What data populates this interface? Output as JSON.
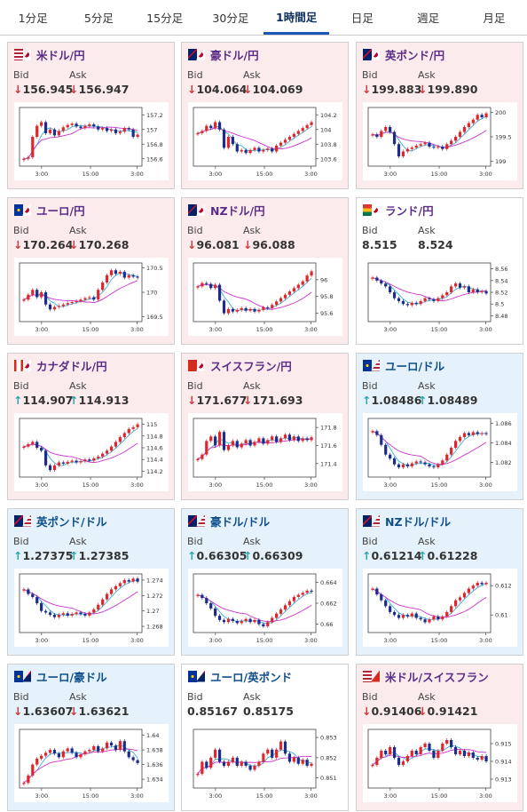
{
  "tabs": [
    {
      "label": "1分足",
      "active": false
    },
    {
      "label": "5分足",
      "active": false
    },
    {
      "label": "15分足",
      "active": false
    },
    {
      "label": "30分足",
      "active": false
    },
    {
      "label": "1時間足",
      "active": true
    },
    {
      "label": "日足",
      "active": false
    },
    {
      "label": "週足",
      "active": false
    },
    {
      "label": "月足",
      "active": false
    }
  ],
  "labels": {
    "bid": "Bid",
    "ask": "Ask"
  },
  "colors": {
    "candle_up": "#e0262b",
    "candle_down": "#1b2c8a",
    "ma_short": "#3ab0d8",
    "ma_long": "#cc33cc",
    "arrow_down": "#d13a3a",
    "arrow_up": "#2aa7ac"
  },
  "cards": [
    {
      "name": "米ドル/円",
      "flag": "us-jp",
      "theme": "jpy",
      "bid": "156.945",
      "ask": "156.947",
      "bid_dir": "down",
      "ask_dir": "down",
      "chart_data": {
        "type": "candlestick",
        "y_ticks": [
          "157.2",
          "157",
          "156.8",
          "156.6"
        ],
        "ylim": [
          156.5,
          157.3
        ],
        "x_ticks": [
          "3:00",
          "15:00",
          "3:00"
        ],
        "closes": [
          156.6,
          156.62,
          156.9,
          157.05,
          157.1,
          156.95,
          157.0,
          156.92,
          156.98,
          157.03,
          157.06,
          157.08,
          157.04,
          157.02,
          157.05,
          157.07,
          157.04,
          157.0,
          157.02,
          156.98,
          157.0,
          156.95,
          156.97,
          157.02,
          157.0,
          156.9,
          156.93
        ]
      }
    },
    {
      "name": "豪ドル/円",
      "flag": "au-jp",
      "theme": "jpy",
      "bid": "104.064",
      "ask": "104.069",
      "bid_dir": "down",
      "ask_dir": "down",
      "chart_data": {
        "type": "candlestick",
        "y_ticks": [
          "104.2",
          "104",
          "103.8",
          "103.6"
        ],
        "ylim": [
          103.5,
          104.3
        ],
        "x_ticks": [
          "3:00",
          "15:00",
          "3:00"
        ],
        "closes": [
          103.95,
          103.98,
          104.05,
          104.02,
          104.1,
          104.0,
          103.75,
          103.9,
          103.8,
          103.7,
          103.72,
          103.68,
          103.72,
          103.75,
          103.7,
          103.72,
          103.74,
          103.7,
          103.78,
          103.82,
          103.86,
          103.9,
          103.94,
          103.98,
          104.02,
          104.06,
          104.1
        ]
      }
    },
    {
      "name": "英ポンド/円",
      "flag": "gb-jp",
      "theme": "jpy",
      "bid": "199.883",
      "ask": "199.890",
      "bid_dir": "down",
      "ask_dir": "down",
      "chart_data": {
        "type": "candlestick",
        "y_ticks": [
          "200",
          "199.5",
          "199"
        ],
        "ylim": [
          198.9,
          200.1
        ],
        "x_ticks": [
          "3:00",
          "15:00",
          "3:00"
        ],
        "closes": [
          199.55,
          199.5,
          199.62,
          199.7,
          199.6,
          199.35,
          199.1,
          199.2,
          199.25,
          199.28,
          199.32,
          199.35,
          199.38,
          199.3,
          199.28,
          199.3,
          199.25,
          199.35,
          199.42,
          199.5,
          199.6,
          199.7,
          199.78,
          199.85,
          199.95,
          199.9,
          199.98
        ]
      }
    },
    {
      "name": "ユーロ/円",
      "flag": "eu-jp",
      "theme": "jpy",
      "bid": "170.264",
      "ask": "170.268",
      "bid_dir": "down",
      "ask_dir": "down",
      "chart_data": {
        "type": "candlestick",
        "y_ticks": [
          "170.5",
          "170",
          "169.5"
        ],
        "ylim": [
          169.4,
          170.6
        ],
        "x_ticks": [
          "3:00",
          "15:00",
          "3:00"
        ],
        "closes": [
          169.85,
          169.95,
          170.05,
          169.9,
          170.0,
          169.75,
          169.65,
          169.7,
          169.72,
          169.75,
          169.78,
          169.8,
          169.82,
          169.85,
          169.88,
          169.9,
          169.85,
          170.05,
          170.2,
          170.35,
          170.45,
          170.38,
          170.42,
          170.3,
          170.35,
          170.32,
          170.3
        ]
      }
    },
    {
      "name": "NZドル/円",
      "flag": "nz-jp",
      "theme": "jpy",
      "bid": "96.081",
      "ask": "96.088",
      "bid_dir": "down",
      "ask_dir": "down",
      "chart_data": {
        "type": "candlestick",
        "y_ticks": [
          "96",
          "95.8",
          "95.6"
        ],
        "ylim": [
          95.5,
          96.2
        ],
        "x_ticks": [
          "3:00",
          "15:00",
          "3:00"
        ],
        "closes": [
          95.92,
          95.96,
          95.95,
          95.9,
          95.94,
          95.75,
          95.6,
          95.65,
          95.62,
          95.64,
          95.66,
          95.63,
          95.65,
          95.62,
          95.64,
          95.67,
          95.66,
          95.7,
          95.74,
          95.78,
          95.82,
          95.86,
          95.9,
          95.94,
          95.98,
          96.05,
          96.1
        ]
      }
    },
    {
      "name": "ランド/円",
      "flag": "za-jp",
      "theme": "white",
      "bid": "8.515",
      "ask": "8.524",
      "bid_dir": "none",
      "ask_dir": "none",
      "chart_data": {
        "type": "candlestick",
        "y_ticks": [
          "8.56",
          "8.54",
          "8.52",
          "8.5",
          "8.48"
        ],
        "ylim": [
          8.47,
          8.57
        ],
        "x_ticks": [
          "3:00",
          "15:00",
          "3:00"
        ],
        "closes": [
          8.545,
          8.54,
          8.535,
          8.53,
          8.52,
          8.51,
          8.505,
          8.5,
          8.498,
          8.502,
          8.5,
          8.505,
          8.51,
          8.508,
          8.505,
          8.51,
          8.515,
          8.52,
          8.53,
          8.535,
          8.528,
          8.53,
          8.52,
          8.525,
          8.52,
          8.522,
          8.518
        ]
      }
    },
    {
      "name": "カナダドル/円",
      "flag": "ca-jp",
      "theme": "jpy",
      "bid": "114.907",
      "ask": "114.913",
      "bid_dir": "up",
      "ask_dir": "up",
      "chart_data": {
        "type": "candlestick",
        "y_ticks": [
          "115",
          "114.8",
          "114.6",
          "114.4",
          "114.2"
        ],
        "ylim": [
          114.1,
          115.1
        ],
        "x_ticks": [
          "3:00",
          "15:00",
          "3:00"
        ],
        "closes": [
          114.62,
          114.66,
          114.7,
          114.6,
          114.55,
          114.3,
          114.22,
          114.3,
          114.35,
          114.33,
          114.36,
          114.38,
          114.35,
          114.37,
          114.4,
          114.38,
          114.42,
          114.45,
          114.5,
          114.55,
          114.62,
          114.7,
          114.78,
          114.85,
          114.92,
          114.95,
          115.0
        ]
      }
    },
    {
      "name": "スイスフラン/円",
      "flag": "ch-jp",
      "theme": "jpy",
      "bid": "171.677",
      "ask": "171.693",
      "bid_dir": "down",
      "ask_dir": "down",
      "chart_data": {
        "type": "candlestick",
        "y_ticks": [
          "171.8",
          "171.6",
          "171.4"
        ],
        "ylim": [
          171.25,
          171.9
        ],
        "x_ticks": [
          "3:00",
          "15:00",
          "3:00"
        ],
        "closes": [
          171.45,
          171.5,
          171.65,
          171.7,
          171.6,
          171.75,
          171.55,
          171.6,
          171.65,
          171.58,
          171.62,
          171.66,
          171.6,
          171.64,
          171.68,
          171.62,
          171.66,
          171.7,
          171.64,
          171.68,
          171.72,
          171.66,
          171.7,
          171.65,
          171.68,
          171.66,
          171.69
        ]
      }
    },
    {
      "name": "ユーロ/ドル",
      "flag": "eu-us",
      "theme": "blue",
      "bid": "1.08486",
      "ask": "1.08489",
      "bid_dir": "up",
      "ask_dir": "up",
      "chart_data": {
        "type": "candlestick",
        "y_ticks": [
          "1.086",
          "1.084",
          "1.082"
        ],
        "ylim": [
          1.0805,
          1.0865
        ],
        "x_ticks": [
          "3:00",
          "15:00",
          "3:00"
        ],
        "closes": [
          1.0852,
          1.0848,
          1.0838,
          1.0828,
          1.0824,
          1.0818,
          1.0815,
          1.0818,
          1.0816,
          1.0819,
          1.0821,
          1.082,
          1.0818,
          1.0816,
          1.0815,
          1.0818,
          1.0822,
          1.0828,
          1.0835,
          1.0842,
          1.0846,
          1.085,
          1.0848,
          1.0851,
          1.0849,
          1.085,
          1.0849
        ]
      }
    },
    {
      "name": "英ポンド/ドル",
      "flag": "gb-us",
      "theme": "blue",
      "bid": "1.27375",
      "ask": "1.27385",
      "bid_dir": "up",
      "ask_dir": "up",
      "chart_data": {
        "type": "candlestick",
        "y_ticks": [
          "1.274",
          "1.272",
          "1.27",
          "1.268"
        ],
        "ylim": [
          1.2672,
          1.2748
        ],
        "x_ticks": [
          "3:00",
          "15:00",
          "3:00"
        ],
        "closes": [
          1.2728,
          1.2722,
          1.2718,
          1.271,
          1.27,
          1.2698,
          1.2695,
          1.2692,
          1.2695,
          1.2697,
          1.2694,
          1.2696,
          1.2698,
          1.2696,
          1.2694,
          1.2698,
          1.2702,
          1.2708,
          1.2715,
          1.2722,
          1.2728,
          1.2732,
          1.2736,
          1.274,
          1.2738,
          1.2742,
          1.2738
        ]
      }
    },
    {
      "name": "豪ドル/ドル",
      "flag": "au-us",
      "theme": "blue",
      "bid": "0.66305",
      "ask": "0.66309",
      "bid_dir": "up",
      "ask_dir": "up",
      "chart_data": {
        "type": "candlestick",
        "y_ticks": [
          "0.664",
          "0.662",
          "0.66"
        ],
        "ylim": [
          0.6592,
          0.6648
        ],
        "x_ticks": [
          "3:00",
          "15:00",
          "3:00"
        ],
        "closes": [
          0.6628,
          0.6625,
          0.662,
          0.6615,
          0.6608,
          0.6604,
          0.6602,
          0.6605,
          0.6603,
          0.6601,
          0.6603,
          0.6605,
          0.6602,
          0.6604,
          0.66,
          0.6598,
          0.6602,
          0.6606,
          0.661,
          0.6614,
          0.6618,
          0.6622,
          0.6626,
          0.6628,
          0.663,
          0.6632,
          0.6631
        ]
      }
    },
    {
      "name": "NZドル/ドル",
      "flag": "nz-us",
      "theme": "blue",
      "bid": "0.61214",
      "ask": "0.61228",
      "bid_dir": "up",
      "ask_dir": "up",
      "chart_data": {
        "type": "candlestick",
        "y_ticks": [
          "0.612",
          "0.61"
        ],
        "ylim": [
          0.6088,
          0.6128
        ],
        "x_ticks": [
          "3:00",
          "15:00",
          "3:00"
        ],
        "closes": [
          0.6118,
          0.6114,
          0.611,
          0.6106,
          0.6102,
          0.61,
          0.6098,
          0.61,
          0.6099,
          0.6101,
          0.6098,
          0.6097,
          0.6095,
          0.6097,
          0.6099,
          0.6097,
          0.6099,
          0.6102,
          0.6106,
          0.611,
          0.6112,
          0.6115,
          0.6118,
          0.612,
          0.6122,
          0.6121,
          0.6122
        ]
      }
    },
    {
      "name": "ユーロ/豪ドル",
      "flag": "eu-au",
      "theme": "blue",
      "bid": "1.63607",
      "ask": "1.63621",
      "bid_dir": "down",
      "ask_dir": "down",
      "chart_data": {
        "type": "candlestick",
        "y_ticks": [
          "1.64",
          "1.638",
          "1.636",
          "1.634"
        ],
        "ylim": [
          1.6328,
          1.6408
        ],
        "x_ticks": [
          "3:00",
          "15:00",
          "3:00"
        ],
        "closes": [
          1.6335,
          1.6345,
          1.636,
          1.6368,
          1.6372,
          1.6376,
          1.638,
          1.6375,
          1.637,
          1.6378,
          1.6382,
          1.6376,
          1.637,
          1.6374,
          1.6378,
          1.638,
          1.6385,
          1.6378,
          1.6382,
          1.639,
          1.6386,
          1.638,
          1.6392,
          1.6378,
          1.637,
          1.6366,
          1.6362
        ]
      }
    },
    {
      "name": "ユーロ/英ポンド",
      "flag": "eu-gb",
      "theme": "white",
      "bid": "0.85167",
      "ask": "0.85175",
      "bid_dir": "none",
      "ask_dir": "none",
      "chart_data": {
        "type": "candlestick",
        "y_ticks": [
          "0.853",
          "0.852",
          "0.851"
        ],
        "ylim": [
          0.8505,
          0.8534
        ],
        "x_ticks": [
          "3:00",
          "15:00",
          "3:00"
        ],
        "closes": [
          0.8512,
          0.8518,
          0.8515,
          0.852,
          0.8524,
          0.8518,
          0.8516,
          0.8518,
          0.852,
          0.8516,
          0.8518,
          0.8516,
          0.8514,
          0.8516,
          0.8518,
          0.8522,
          0.8524,
          0.852,
          0.8524,
          0.8528,
          0.8522,
          0.8518,
          0.852,
          0.8517,
          0.8519,
          0.8516,
          0.8517
        ]
      }
    },
    {
      "name": "米ドル/スイスフラン",
      "flag": "us-ch",
      "theme": "jpy",
      "bid": "0.91406",
      "ask": "0.91421",
      "bid_dir": "down",
      "ask_dir": "down",
      "chart_data": {
        "type": "candlestick",
        "y_ticks": [
          "0.915",
          "0.914",
          "0.913"
        ],
        "ylim": [
          0.9125,
          0.9158
        ],
        "x_ticks": [
          "3:00",
          "15:00",
          "3:00"
        ],
        "closes": [
          0.9138,
          0.9142,
          0.9146,
          0.9144,
          0.9148,
          0.9142,
          0.9138,
          0.914,
          0.9143,
          0.9146,
          0.9144,
          0.9148,
          0.915,
          0.9146,
          0.9142,
          0.9146,
          0.915,
          0.9152,
          0.9148,
          0.9144,
          0.9146,
          0.9143,
          0.9145,
          0.9142,
          0.9141,
          0.9143,
          0.914
        ]
      }
    }
  ]
}
